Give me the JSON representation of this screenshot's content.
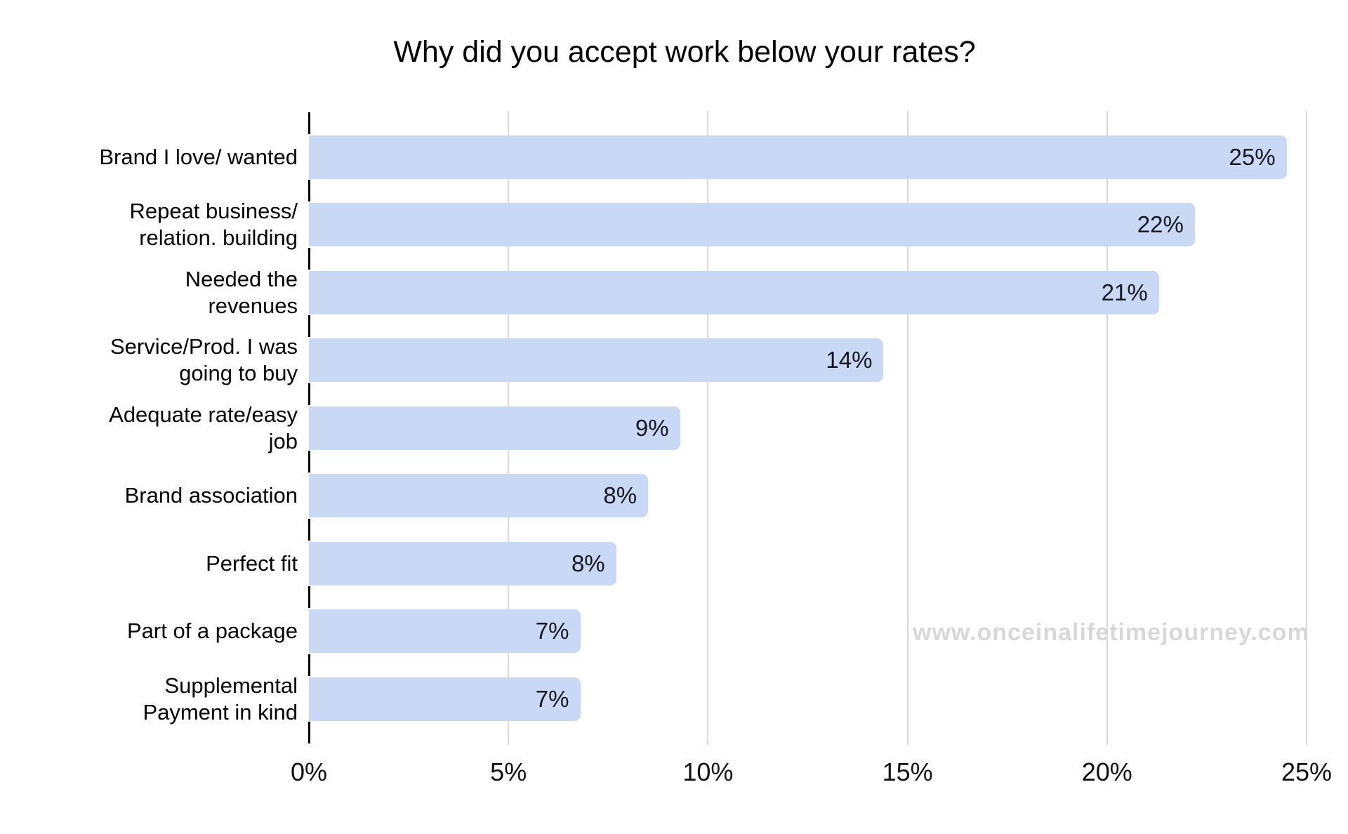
{
  "title": "Why did you accept work below your rates?",
  "watermark": "www.onceinalifetimejourney.com",
  "chart_data": {
    "type": "bar",
    "orientation": "horizontal",
    "title": "Why did you accept work below your rates?",
    "categories": [
      {
        "lines": [
          "Brand I love/ wanted"
        ]
      },
      {
        "lines": [
          "Repeat business/",
          "relation. building"
        ]
      },
      {
        "lines": [
          "Needed the",
          "revenues"
        ]
      },
      {
        "lines": [
          "Service/Prod. I was",
          "going to buy"
        ]
      },
      {
        "lines": [
          "Adequate rate/easy",
          "job"
        ]
      },
      {
        "lines": [
          "Brand association"
        ]
      },
      {
        "lines": [
          "Perfect fit"
        ]
      },
      {
        "lines": [
          "Part of a package"
        ]
      },
      {
        "lines": [
          "Supplemental",
          "Payment in kind"
        ]
      }
    ],
    "values": [
      25,
      22,
      21,
      14,
      9,
      8,
      8,
      7,
      7
    ],
    "value_labels": [
      "25%",
      "22%",
      "21%",
      "14%",
      "9%",
      "8%",
      "8%",
      "7%",
      "7%"
    ],
    "bar_lengths_pct": [
      24.5,
      22.2,
      21.3,
      14.4,
      9.3,
      8.5,
      7.7,
      6.8,
      6.8
    ],
    "xlabel": "",
    "ylabel": "",
    "xlim": [
      0,
      25
    ],
    "x_ticks": [
      {
        "value": 0,
        "label": "0%"
      },
      {
        "value": 5,
        "label": "5%"
      },
      {
        "value": 10,
        "label": "10%"
      },
      {
        "value": 15,
        "label": "15%"
      },
      {
        "value": 20,
        "label": "20%"
      },
      {
        "value": 25,
        "label": "25%"
      }
    ],
    "grid": true,
    "legend_position": "none",
    "colors": {
      "bar_fill": "#c9d8f4",
      "gridline": "#d9d9d9",
      "axis_tick": "#000000",
      "category_text": "#000000",
      "value_label": "#16181f",
      "axis_label": "#111111",
      "watermark": "#d8d8d8"
    }
  }
}
